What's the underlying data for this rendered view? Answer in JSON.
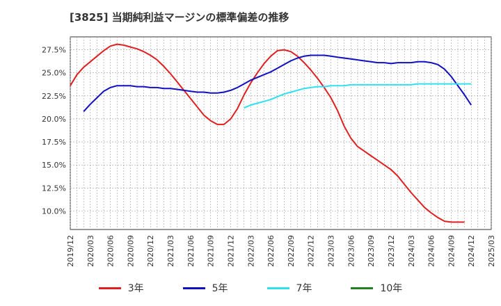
{
  "title": "[3825]  当期純利益マージンの標準偏差の推移",
  "chart_data": {
    "type": "line",
    "title": "[3825]  当期純利益マージンの標準偏差の推移",
    "xlabel": "",
    "ylabel": "",
    "x_tick_labels": [
      "2019/12",
      "2020/03",
      "2020/06",
      "2020/09",
      "2020/12",
      "2021/03",
      "2021/06",
      "2021/09",
      "2021/12",
      "2022/03",
      "2022/06",
      "2022/09",
      "2022/12",
      "2023/03",
      "2023/06",
      "2023/09",
      "2023/12",
      "2024/03",
      "2024/06",
      "2024/09",
      "2024/12",
      "2025/03"
    ],
    "y_tick_labels": [
      "10.0%",
      "12.5%",
      "15.0%",
      "17.5%",
      "20.0%",
      "22.5%",
      "25.0%",
      "27.5%"
    ],
    "ylim": [
      8.0,
      28.9
    ],
    "grid": true,
    "legend_position": "bottom",
    "series": [
      {
        "name": "3年",
        "color": "#e02020",
        "points": [
          [
            "2019/12",
            23.6
          ],
          [
            "2020/01",
            24.8
          ],
          [
            "2020/02",
            25.6
          ],
          [
            "2020/03",
            26.2
          ],
          [
            "2020/04",
            26.8
          ],
          [
            "2020/05",
            27.4
          ],
          [
            "2020/06",
            27.9
          ],
          [
            "2020/07",
            28.1
          ],
          [
            "2020/08",
            28.0
          ],
          [
            "2020/09",
            27.8
          ],
          [
            "2020/10",
            27.6
          ],
          [
            "2020/11",
            27.3
          ],
          [
            "2020/12",
            26.9
          ],
          [
            "2021/01",
            26.4
          ],
          [
            "2021/02",
            25.7
          ],
          [
            "2021/03",
            24.9
          ],
          [
            "2021/04",
            24.0
          ],
          [
            "2021/05",
            23.1
          ],
          [
            "2021/06",
            22.2
          ],
          [
            "2021/07",
            21.3
          ],
          [
            "2021/08",
            20.4
          ],
          [
            "2021/09",
            19.8
          ],
          [
            "2021/10",
            19.4
          ],
          [
            "2021/11",
            19.4
          ],
          [
            "2021/12",
            20.0
          ],
          [
            "2022/01",
            21.1
          ],
          [
            "2022/02",
            22.6
          ],
          [
            "2022/03",
            23.9
          ],
          [
            "2022/04",
            25.0
          ],
          [
            "2022/05",
            26.0
          ],
          [
            "2022/06",
            26.8
          ],
          [
            "2022/07",
            27.4
          ],
          [
            "2022/08",
            27.5
          ],
          [
            "2022/09",
            27.3
          ],
          [
            "2022/10",
            26.8
          ],
          [
            "2022/11",
            26.1
          ],
          [
            "2022/12",
            25.3
          ],
          [
            "2023/01",
            24.4
          ],
          [
            "2023/02",
            23.4
          ],
          [
            "2023/03",
            22.3
          ],
          [
            "2023/04",
            20.9
          ],
          [
            "2023/05",
            19.2
          ],
          [
            "2023/06",
            17.9
          ],
          [
            "2023/07",
            17.0
          ],
          [
            "2023/08",
            16.5
          ],
          [
            "2023/09",
            16.0
          ],
          [
            "2023/10",
            15.5
          ],
          [
            "2023/11",
            15.0
          ],
          [
            "2023/12",
            14.5
          ],
          [
            "2024/01",
            13.8
          ],
          [
            "2024/02",
            12.9
          ],
          [
            "2024/03",
            12.0
          ],
          [
            "2024/04",
            11.2
          ],
          [
            "2024/05",
            10.4
          ],
          [
            "2024/06",
            9.8
          ],
          [
            "2024/07",
            9.3
          ],
          [
            "2024/08",
            8.9
          ],
          [
            "2024/09",
            8.8
          ],
          [
            "2024/10",
            8.8
          ],
          [
            "2024/11",
            8.8
          ]
        ]
      },
      {
        "name": "5年",
        "color": "#1010c0",
        "points": [
          [
            "2020/02",
            20.8
          ],
          [
            "2020/03",
            21.6
          ],
          [
            "2020/04",
            22.3
          ],
          [
            "2020/05",
            23.0
          ],
          [
            "2020/06",
            23.4
          ],
          [
            "2020/07",
            23.6
          ],
          [
            "2020/08",
            23.6
          ],
          [
            "2020/09",
            23.6
          ],
          [
            "2020/10",
            23.5
          ],
          [
            "2020/11",
            23.5
          ],
          [
            "2020/12",
            23.4
          ],
          [
            "2021/01",
            23.4
          ],
          [
            "2021/02",
            23.3
          ],
          [
            "2021/03",
            23.3
          ],
          [
            "2021/04",
            23.2
          ],
          [
            "2021/05",
            23.1
          ],
          [
            "2021/06",
            23.0
          ],
          [
            "2021/07",
            22.9
          ],
          [
            "2021/08",
            22.9
          ],
          [
            "2021/09",
            22.8
          ],
          [
            "2021/10",
            22.8
          ],
          [
            "2021/11",
            22.9
          ],
          [
            "2021/12",
            23.1
          ],
          [
            "2022/01",
            23.4
          ],
          [
            "2022/02",
            23.8
          ],
          [
            "2022/03",
            24.2
          ],
          [
            "2022/04",
            24.5
          ],
          [
            "2022/05",
            24.8
          ],
          [
            "2022/06",
            25.1
          ],
          [
            "2022/07",
            25.5
          ],
          [
            "2022/08",
            25.9
          ],
          [
            "2022/09",
            26.3
          ],
          [
            "2022/10",
            26.6
          ],
          [
            "2022/11",
            26.8
          ],
          [
            "2022/12",
            26.9
          ],
          [
            "2023/01",
            26.9
          ],
          [
            "2023/02",
            26.9
          ],
          [
            "2023/03",
            26.8
          ],
          [
            "2023/04",
            26.7
          ],
          [
            "2023/05",
            26.6
          ],
          [
            "2023/06",
            26.5
          ],
          [
            "2023/07",
            26.4
          ],
          [
            "2023/08",
            26.3
          ],
          [
            "2023/09",
            26.2
          ],
          [
            "2023/10",
            26.1
          ],
          [
            "2023/11",
            26.1
          ],
          [
            "2023/12",
            26.0
          ],
          [
            "2024/01",
            26.1
          ],
          [
            "2024/02",
            26.1
          ],
          [
            "2024/03",
            26.1
          ],
          [
            "2024/04",
            26.2
          ],
          [
            "2024/05",
            26.2
          ],
          [
            "2024/06",
            26.1
          ],
          [
            "2024/07",
            25.9
          ],
          [
            "2024/08",
            25.4
          ],
          [
            "2024/09",
            24.6
          ],
          [
            "2024/10",
            23.6
          ],
          [
            "2024/11",
            22.6
          ],
          [
            "2024/12",
            21.5
          ]
        ]
      },
      {
        "name": "7年",
        "color": "#30e0f0",
        "points": [
          [
            "2022/02",
            21.2
          ],
          [
            "2022/03",
            21.5
          ],
          [
            "2022/04",
            21.7
          ],
          [
            "2022/05",
            21.9
          ],
          [
            "2022/06",
            22.1
          ],
          [
            "2022/07",
            22.4
          ],
          [
            "2022/08",
            22.7
          ],
          [
            "2022/09",
            22.9
          ],
          [
            "2022/10",
            23.1
          ],
          [
            "2022/11",
            23.3
          ],
          [
            "2022/12",
            23.4
          ],
          [
            "2023/01",
            23.5
          ],
          [
            "2023/02",
            23.5
          ],
          [
            "2023/03",
            23.6
          ],
          [
            "2023/04",
            23.6
          ],
          [
            "2023/05",
            23.6
          ],
          [
            "2023/06",
            23.7
          ],
          [
            "2023/07",
            23.7
          ],
          [
            "2023/08",
            23.7
          ],
          [
            "2023/09",
            23.7
          ],
          [
            "2023/10",
            23.7
          ],
          [
            "2023/11",
            23.7
          ],
          [
            "2023/12",
            23.7
          ],
          [
            "2024/01",
            23.7
          ],
          [
            "2024/02",
            23.7
          ],
          [
            "2024/03",
            23.7
          ],
          [
            "2024/04",
            23.8
          ],
          [
            "2024/05",
            23.8
          ],
          [
            "2024/06",
            23.8
          ],
          [
            "2024/07",
            23.8
          ],
          [
            "2024/08",
            23.8
          ],
          [
            "2024/09",
            23.8
          ],
          [
            "2024/10",
            23.8
          ],
          [
            "2024/11",
            23.8
          ],
          [
            "2024/12",
            23.8
          ]
        ]
      },
      {
        "name": "10年",
        "color": "#208020",
        "points": []
      }
    ]
  }
}
